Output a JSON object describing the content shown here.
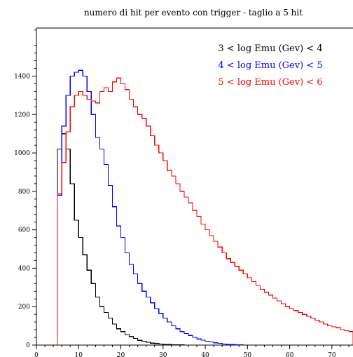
{
  "chart_data": {
    "type": "line",
    "title": "numero di hit per evento con trigger - taglio a 5 hit",
    "xlabel": "",
    "ylabel": "",
    "xlim": [
      0,
      75
    ],
    "ylim": [
      0,
      1650
    ],
    "x_ticks": [
      0,
      10,
      20,
      30,
      40,
      50,
      60,
      70
    ],
    "y_ticks": [
      0,
      200,
      400,
      600,
      800,
      1000,
      1200,
      1400
    ],
    "x_tick_labels": [
      "0",
      "10",
      "20",
      "30",
      "40",
      "50",
      "60",
      "70"
    ],
    "y_tick_labels": [
      "0",
      "200",
      "400",
      "600",
      "800",
      "1000",
      "1200",
      "1400"
    ],
    "grid": false,
    "legend_position": "top-right",
    "bin_width": 1,
    "x_start": 5,
    "series": [
      {
        "name": "3 < log Emu (Gev) < 4",
        "color": "#000000",
        "values": [
          1020,
          1100,
          1020,
          840,
          650,
          560,
          470,
          390,
          320,
          250,
          200,
          170,
          140,
          110,
          85,
          70,
          55,
          45,
          35,
          25,
          20,
          15,
          10,
          8,
          6,
          4,
          3,
          2,
          1,
          1
        ]
      },
      {
        "name": "4 < log Emu (Gev) < 5",
        "color": "#0000ff",
        "values": [
          780,
          1140,
          1300,
          1400,
          1420,
          1430,
          1400,
          1320,
          1200,
          1080,
          1020,
          940,
          830,
          720,
          620,
          560,
          480,
          420,
          370,
          320,
          280,
          250,
          220,
          190,
          165,
          140,
          120,
          100,
          85,
          70,
          60,
          50,
          40,
          32,
          26,
          20,
          16,
          12,
          9,
          6,
          4,
          3,
          2,
          1
        ]
      },
      {
        "name": "5 < log Emu (Gev) < 6",
        "color": "#ff0000",
        "values": [
          790,
          950,
          1110,
          1240,
          1300,
          1320,
          1300,
          1280,
          1270,
          1260,
          1320,
          1340,
          1320,
          1370,
          1390,
          1360,
          1330,
          1280,
          1240,
          1200,
          1180,
          1140,
          1090,
          1040,
          1000,
          960,
          910,
          880,
          840,
          800,
          770,
          740,
          700,
          670,
          630,
          600,
          570,
          540,
          510,
          480,
          450,
          430,
          410,
          390,
          370,
          350,
          330,
          310,
          290,
          275,
          260,
          245,
          230,
          215,
          200,
          190,
          180,
          170,
          160,
          150,
          140,
          130,
          120,
          110,
          100,
          95,
          90,
          80,
          75,
          70
        ]
      }
    ]
  }
}
